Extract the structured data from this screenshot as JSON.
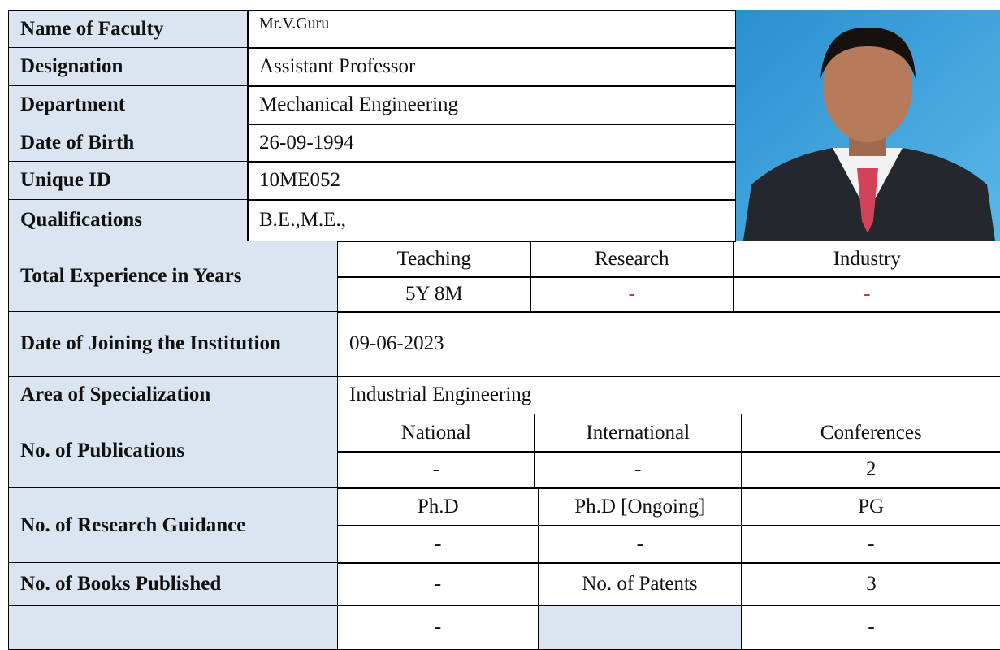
{
  "profile": {
    "rows": [
      [
        "Name of Faculty",
        "Mr.V.Guru"
      ],
      [
        "Designation",
        "Assistant Professor"
      ],
      [
        "Department",
        "Mechanical Engineering"
      ],
      [
        "Date of Birth",
        "26-09-1994"
      ],
      [
        "Unique ID",
        "10ME052"
      ],
      [
        "Qualifications",
        "B.E.,M.E.,"
      ]
    ]
  },
  "experience": {
    "label": "Total Experience in Years",
    "headers": [
      "Teaching",
      "Research",
      "Industry"
    ],
    "values": [
      "5Y 8M",
      "-",
      "-"
    ]
  },
  "joining": {
    "label": "Date of Joining the Institution",
    "value": "09-06-2023"
  },
  "specialization": {
    "label": "Area of Specialization",
    "value": "Industrial Engineering"
  },
  "publications": {
    "label": "No. of  Publications",
    "headers": [
      "National",
      "International",
      "Conferences"
    ],
    "values": [
      "-",
      "-",
      "2"
    ]
  },
  "guidance": {
    "label": "No. of Research Guidance",
    "headers": [
      "Ph.D",
      "Ph.D [Ongoing]",
      "PG"
    ],
    "values": [
      "-",
      "-",
      "-"
    ]
  },
  "books": {
    "label": "No. of Books Published",
    "value": "-",
    "patents_label": "No. of Patents",
    "patents_value": "3"
  },
  "last_row": [
    "-",
    "-"
  ]
}
